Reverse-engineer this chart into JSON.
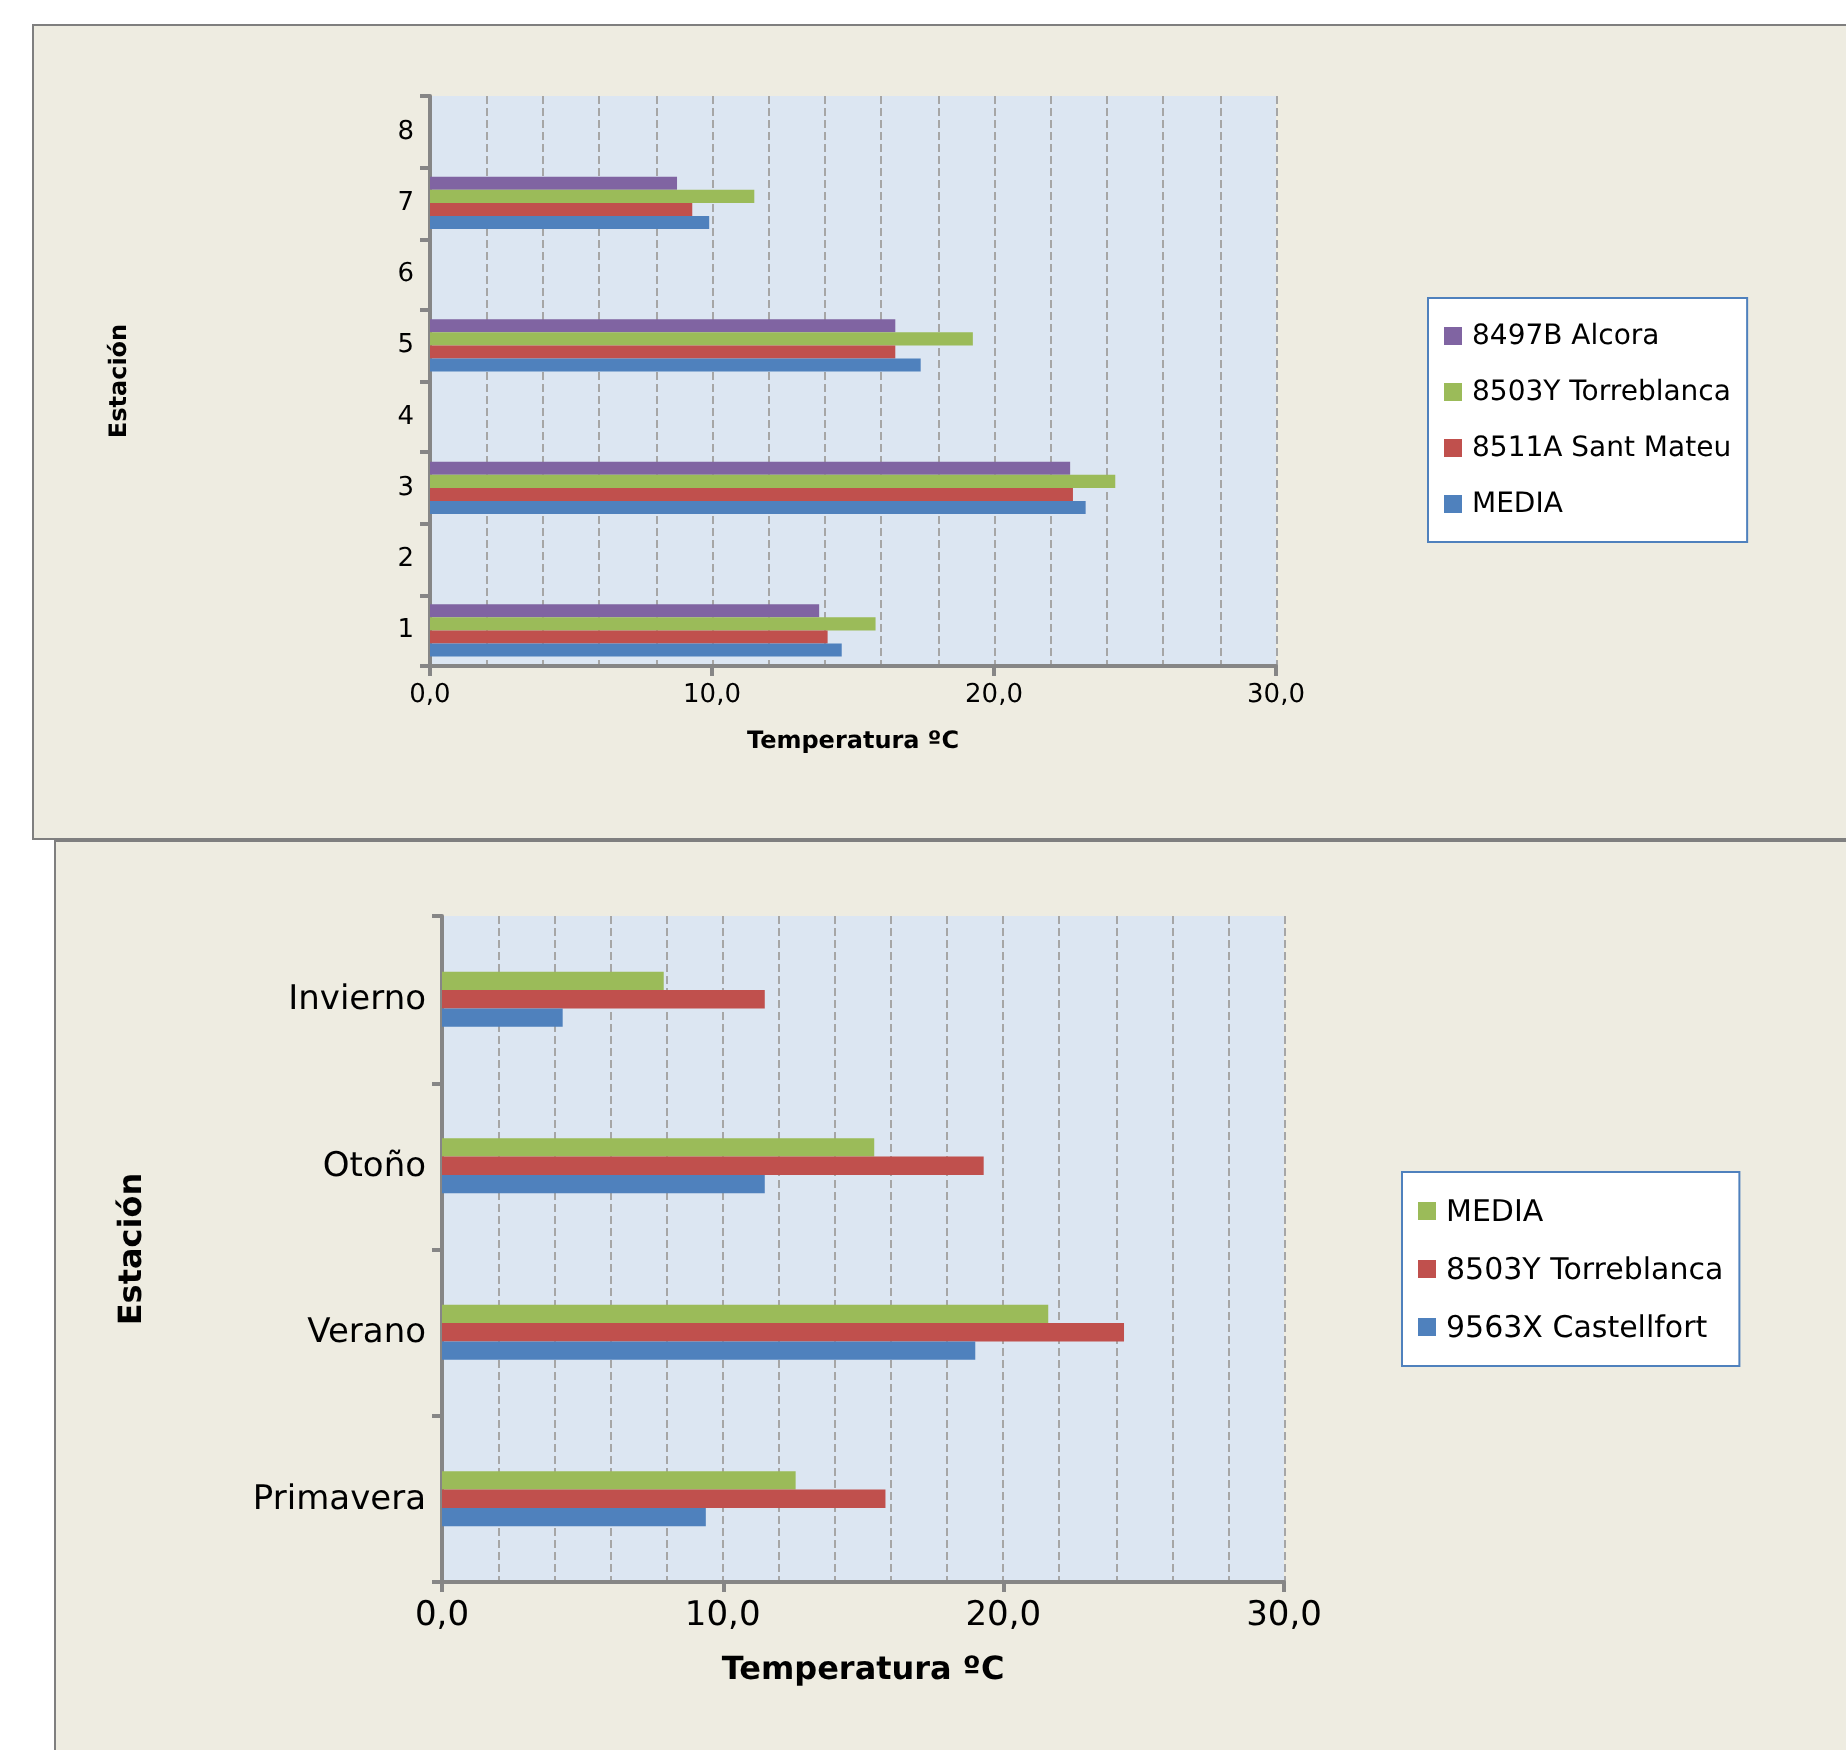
{
  "chart_data": [
    {
      "type": "bar",
      "orientation": "horizontal",
      "ylabel": "Estación",
      "xlabel": "Temperatura ºC",
      "categories": [
        "8",
        "7",
        "6",
        "5",
        "4",
        "3",
        "2",
        "1"
      ],
      "series": [
        {
          "name": "MEDIA",
          "color": "#4f81bd",
          "values": [
            null,
            9.9,
            null,
            17.4,
            null,
            23.25,
            null,
            14.6
          ]
        },
        {
          "name": "8511A Sant Mateu",
          "color": "#c0504d",
          "values": [
            null,
            9.3,
            null,
            16.5,
            null,
            22.8,
            null,
            14.1
          ]
        },
        {
          "name": "8503Y Torreblanca",
          "color": "#9bbb59",
          "values": [
            null,
            11.5,
            null,
            19.25,
            null,
            24.3,
            null,
            15.8
          ]
        },
        {
          "name": "8497B Alcora",
          "color": "#8064a2",
          "values": [
            null,
            8.76,
            null,
            16.5,
            null,
            22.7,
            null,
            13.8
          ]
        }
      ],
      "xlim": [
        0,
        30
      ],
      "xticks": [
        {
          "value": 0,
          "label": "0,0"
        },
        {
          "value": 2,
          "label": null
        },
        {
          "value": 4,
          "label": null
        },
        {
          "value": 6,
          "label": null
        },
        {
          "value": 8,
          "label": null
        },
        {
          "value": 10,
          "label": "10,0"
        },
        {
          "value": 12,
          "label": null
        },
        {
          "value": 14,
          "label": null
        },
        {
          "value": 16,
          "label": null
        },
        {
          "value": 18,
          "label": null
        },
        {
          "value": 20,
          "label": "20,0"
        },
        {
          "value": 22,
          "label": null
        },
        {
          "value": 24,
          "label": null
        },
        {
          "value": 26,
          "label": null
        },
        {
          "value": 28,
          "label": null
        },
        {
          "value": 30,
          "label": "30,0"
        }
      ],
      "grid": "x",
      "legend": "right"
    },
    {
      "type": "bar",
      "orientation": "horizontal",
      "ylabel": "Estación",
      "xlabel": "Temperatura ºC",
      "categories": [
        "Invierno",
        "Otoño",
        "Verano",
        "Primavera"
      ],
      "series": [
        {
          "name": "9563X Castellfort",
          "color": "#4f81bd",
          "values": [
            4.3,
            11.5,
            19.0,
            9.4
          ]
        },
        {
          "name": "8503Y Torreblanca",
          "color": "#c0504d",
          "values": [
            11.5,
            19.3,
            24.3,
            15.8
          ]
        },
        {
          "name": "MEDIA",
          "color": "#9bbb59",
          "values": [
            7.9,
            15.4,
            21.6,
            12.6
          ]
        }
      ],
      "xlim": [
        0,
        30
      ],
      "xticks": [
        {
          "value": 0,
          "label": "0,0"
        },
        {
          "value": 2,
          "label": null
        },
        {
          "value": 4,
          "label": null
        },
        {
          "value": 6,
          "label": null
        },
        {
          "value": 8,
          "label": null
        },
        {
          "value": 10,
          "label": "10,0"
        },
        {
          "value": 12,
          "label": null
        },
        {
          "value": 14,
          "label": null
        },
        {
          "value": 16,
          "label": null
        },
        {
          "value": 18,
          "label": null
        },
        {
          "value": 20,
          "label": "20,0"
        },
        {
          "value": 22,
          "label": null
        },
        {
          "value": 24,
          "label": null
        },
        {
          "value": 26,
          "label": null
        },
        {
          "value": 28,
          "label": null
        },
        {
          "value": 30,
          "label": "30,0"
        }
      ],
      "grid": "x",
      "legend": "right"
    }
  ]
}
